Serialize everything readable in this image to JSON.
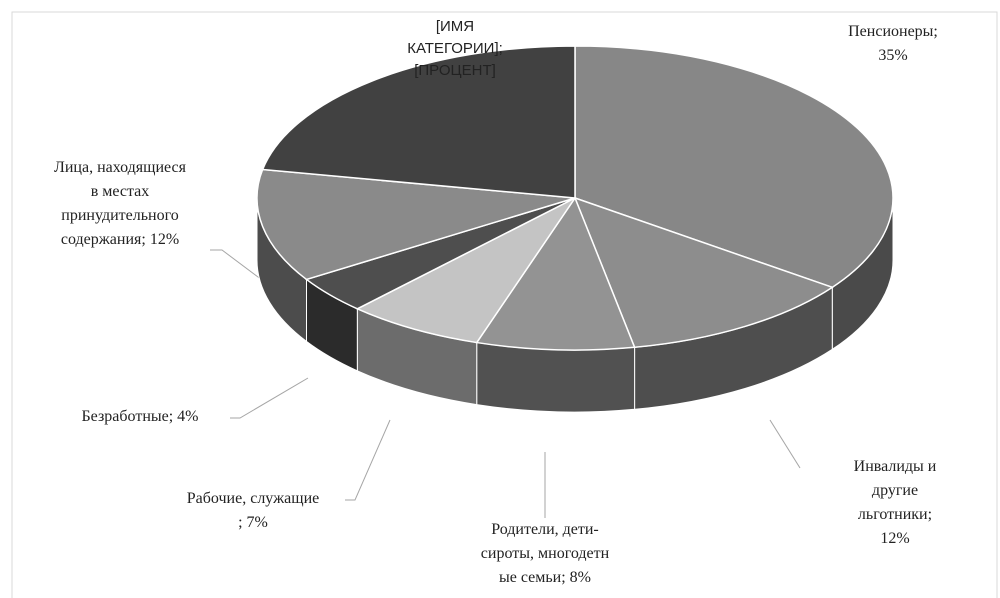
{
  "chart_data": {
    "type": "pie3d",
    "values": [
      35,
      12,
      8,
      7,
      4,
      12,
      22
    ],
    "value_labels": [
      "Пенсионеры; 35%",
      "Инвалиды и другие\nльготники; 12%",
      "Родители, дети-\nсироты, многодетн\nые семьи; 8%",
      "Рабочие, служащие\n; 7%",
      "Безработные; 4%",
      "Лица, находящиеся\nв местах\nпринудительного\nсодержания; 12%",
      "[ИМЯ\nКАТЕГОРИИ];\n[ПРОЦЕНТ]"
    ],
    "colors": [
      "#878787",
      "#8d8d8d",
      "#939393",
      "#c4c4c4",
      "#4e4e4e",
      "#8a8a8a",
      "#414141"
    ]
  }
}
